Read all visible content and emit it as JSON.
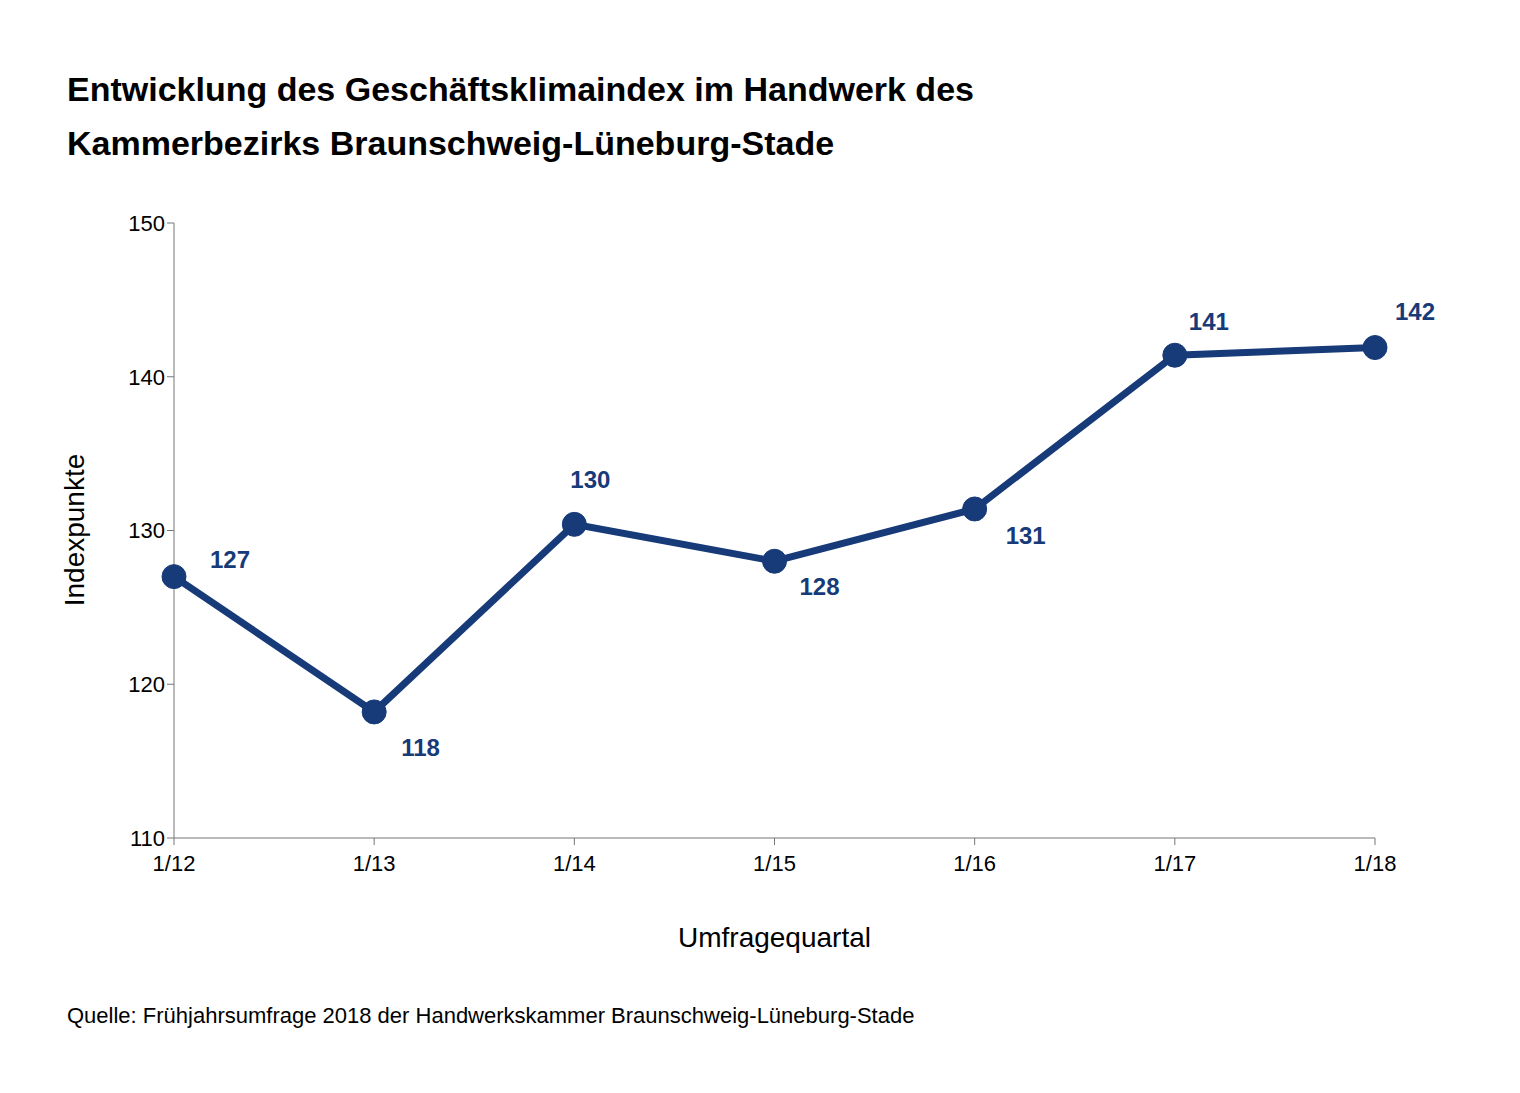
{
  "chart_data": {
    "type": "line",
    "title": "Entwicklung des Geschäftsklimaindex im Handwerk des Kammerbezirks Braunschweig-Lüneburg-Stade",
    "x_label": "Umfragequartal",
    "y_label": "Indexpunkte",
    "source": "Quelle: Frühjahrsumfrage 2018 der Handwerkskammer Braunschweig-Lüneburg-Stade",
    "categories": [
      "1/12",
      "1/13",
      "1/14",
      "1/15",
      "1/16",
      "1/17",
      "1/18"
    ],
    "values": [
      127,
      118.2,
      130.4,
      128.0,
      131.4,
      141.4,
      141.9
    ],
    "value_labels": [
      "127",
      "118",
      "130",
      "128",
      "131",
      "141",
      "142"
    ],
    "color": "#173a78",
    "ylim": [
      110,
      150
    ],
    "yticks": [
      110,
      120,
      130,
      140,
      150
    ],
    "grid": false,
    "data_labels": true,
    "marker": "circle",
    "line_style": "solid"
  }
}
